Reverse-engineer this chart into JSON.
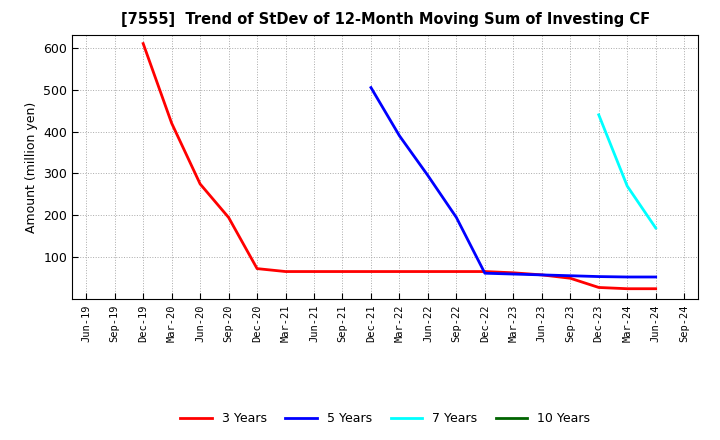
{
  "title": "[7555]  Trend of StDev of 12-Month Moving Sum of Investing CF",
  "ylabel": "Amount (million yen)",
  "ylim": [
    0,
    630
  ],
  "yticks": [
    100,
    200,
    300,
    400,
    500,
    600
  ],
  "background_color": "#ffffff",
  "grid_color": "#aaaaaa",
  "series": {
    "3years": {
      "color": "#ff0000",
      "label": "3 Years",
      "x": [
        "Dec-19",
        "Mar-20",
        "Jun-20",
        "Sep-20",
        "Dec-20",
        "Mar-21",
        "Jun-21",
        "Sep-21",
        "Dec-21",
        "Mar-22",
        "Jun-22",
        "Sep-22",
        "Dec-22",
        "Mar-23",
        "Jun-23",
        "Sep-23",
        "Dec-23",
        "Mar-24",
        "Jun-24"
      ],
      "y": [
        610,
        420,
        275,
        195,
        73,
        66,
        66,
        66,
        66,
        66,
        66,
        66,
        66,
        63,
        58,
        50,
        28,
        25,
        25
      ]
    },
    "5years": {
      "color": "#0000ff",
      "label": "5 Years",
      "x": [
        "Dec-21",
        "Mar-22",
        "Jun-22",
        "Sep-22",
        "Dec-22",
        "Mar-23",
        "Jun-23",
        "Sep-23",
        "Dec-23",
        "Mar-24",
        "Jun-24"
      ],
      "y": [
        505,
        390,
        295,
        195,
        62,
        60,
        58,
        56,
        54,
        53,
        53
      ]
    },
    "7years": {
      "color": "#00ffff",
      "label": "7 Years",
      "x": [
        "Dec-23",
        "Mar-24",
        "Jun-24"
      ],
      "y": [
        440,
        270,
        170
      ]
    },
    "10years": {
      "color": "#006400",
      "label": "10 Years",
      "x": [],
      "y": []
    }
  },
  "xtick_labels": [
    "Jun-19",
    "Sep-19",
    "Dec-19",
    "Mar-20",
    "Jun-20",
    "Sep-20",
    "Dec-20",
    "Mar-21",
    "Jun-21",
    "Sep-21",
    "Dec-21",
    "Mar-22",
    "Jun-22",
    "Sep-22",
    "Dec-22",
    "Mar-23",
    "Jun-23",
    "Sep-23",
    "Dec-23",
    "Mar-24",
    "Jun-24",
    "Sep-24"
  ],
  "legend": {
    "3years": "3 Years",
    "5years": "5 Years",
    "7years": "7 Years",
    "10years": "10 Years"
  }
}
